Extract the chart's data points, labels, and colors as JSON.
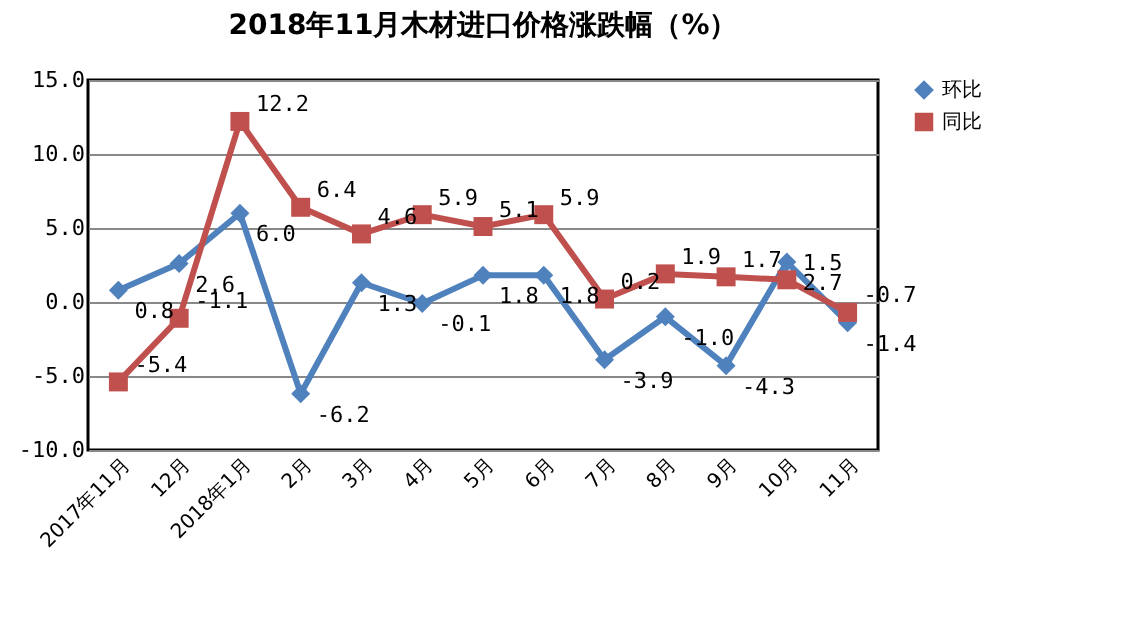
{
  "chart_data": {
    "type": "line",
    "title": "2018年11月木材进口价格涨跌幅（%）",
    "categories": [
      "2017年11月",
      "12月",
      "2018年1月",
      "2月",
      "3月",
      "4月",
      "5月",
      "6月",
      "7月",
      "8月",
      "9月",
      "10月",
      "11月"
    ],
    "series": [
      {
        "name": "环比",
        "color": "#4f81bd",
        "marker": "diamond",
        "values": [
          0.8,
          2.6,
          6.0,
          -6.2,
          1.3,
          -0.1,
          1.8,
          1.8,
          -3.9,
          -1.0,
          -4.3,
          2.7,
          -1.4
        ],
        "value_labels": [
          "0.8",
          "2.6",
          "6.0",
          "-6.2",
          "1.3",
          "-0.1",
          "1.8",
          "1.8",
          "-3.9",
          "-1.0",
          "-4.3",
          "2.7",
          "-1.4"
        ]
      },
      {
        "name": "同比",
        "color": "#c0504d",
        "marker": "square",
        "values": [
          -5.4,
          -1.1,
          12.2,
          6.4,
          4.6,
          5.9,
          5.1,
          5.9,
          0.2,
          1.9,
          1.7,
          1.5,
          -0.7
        ],
        "value_labels": [
          "-5.4",
          "-1.1",
          "12.2",
          "6.4",
          "4.6",
          "5.9",
          "5.1",
          "5.9",
          "0.2",
          "1.9",
          "1.7",
          "1.5",
          "-0.7"
        ]
      }
    ],
    "ylim": [
      -10,
      15
    ],
    "yticks": [
      {
        "value": -10,
        "label": "-10.0"
      },
      {
        "value": -5,
        "label": "-5.0"
      },
      {
        "value": 0,
        "label": "0.0"
      },
      {
        "value": 5,
        "label": "5.0"
      },
      {
        "value": 10,
        "label": "10.0"
      },
      {
        "value": 15,
        "label": "15.0"
      }
    ],
    "grid": "y",
    "legend": "right",
    "line_style": "solid"
  }
}
